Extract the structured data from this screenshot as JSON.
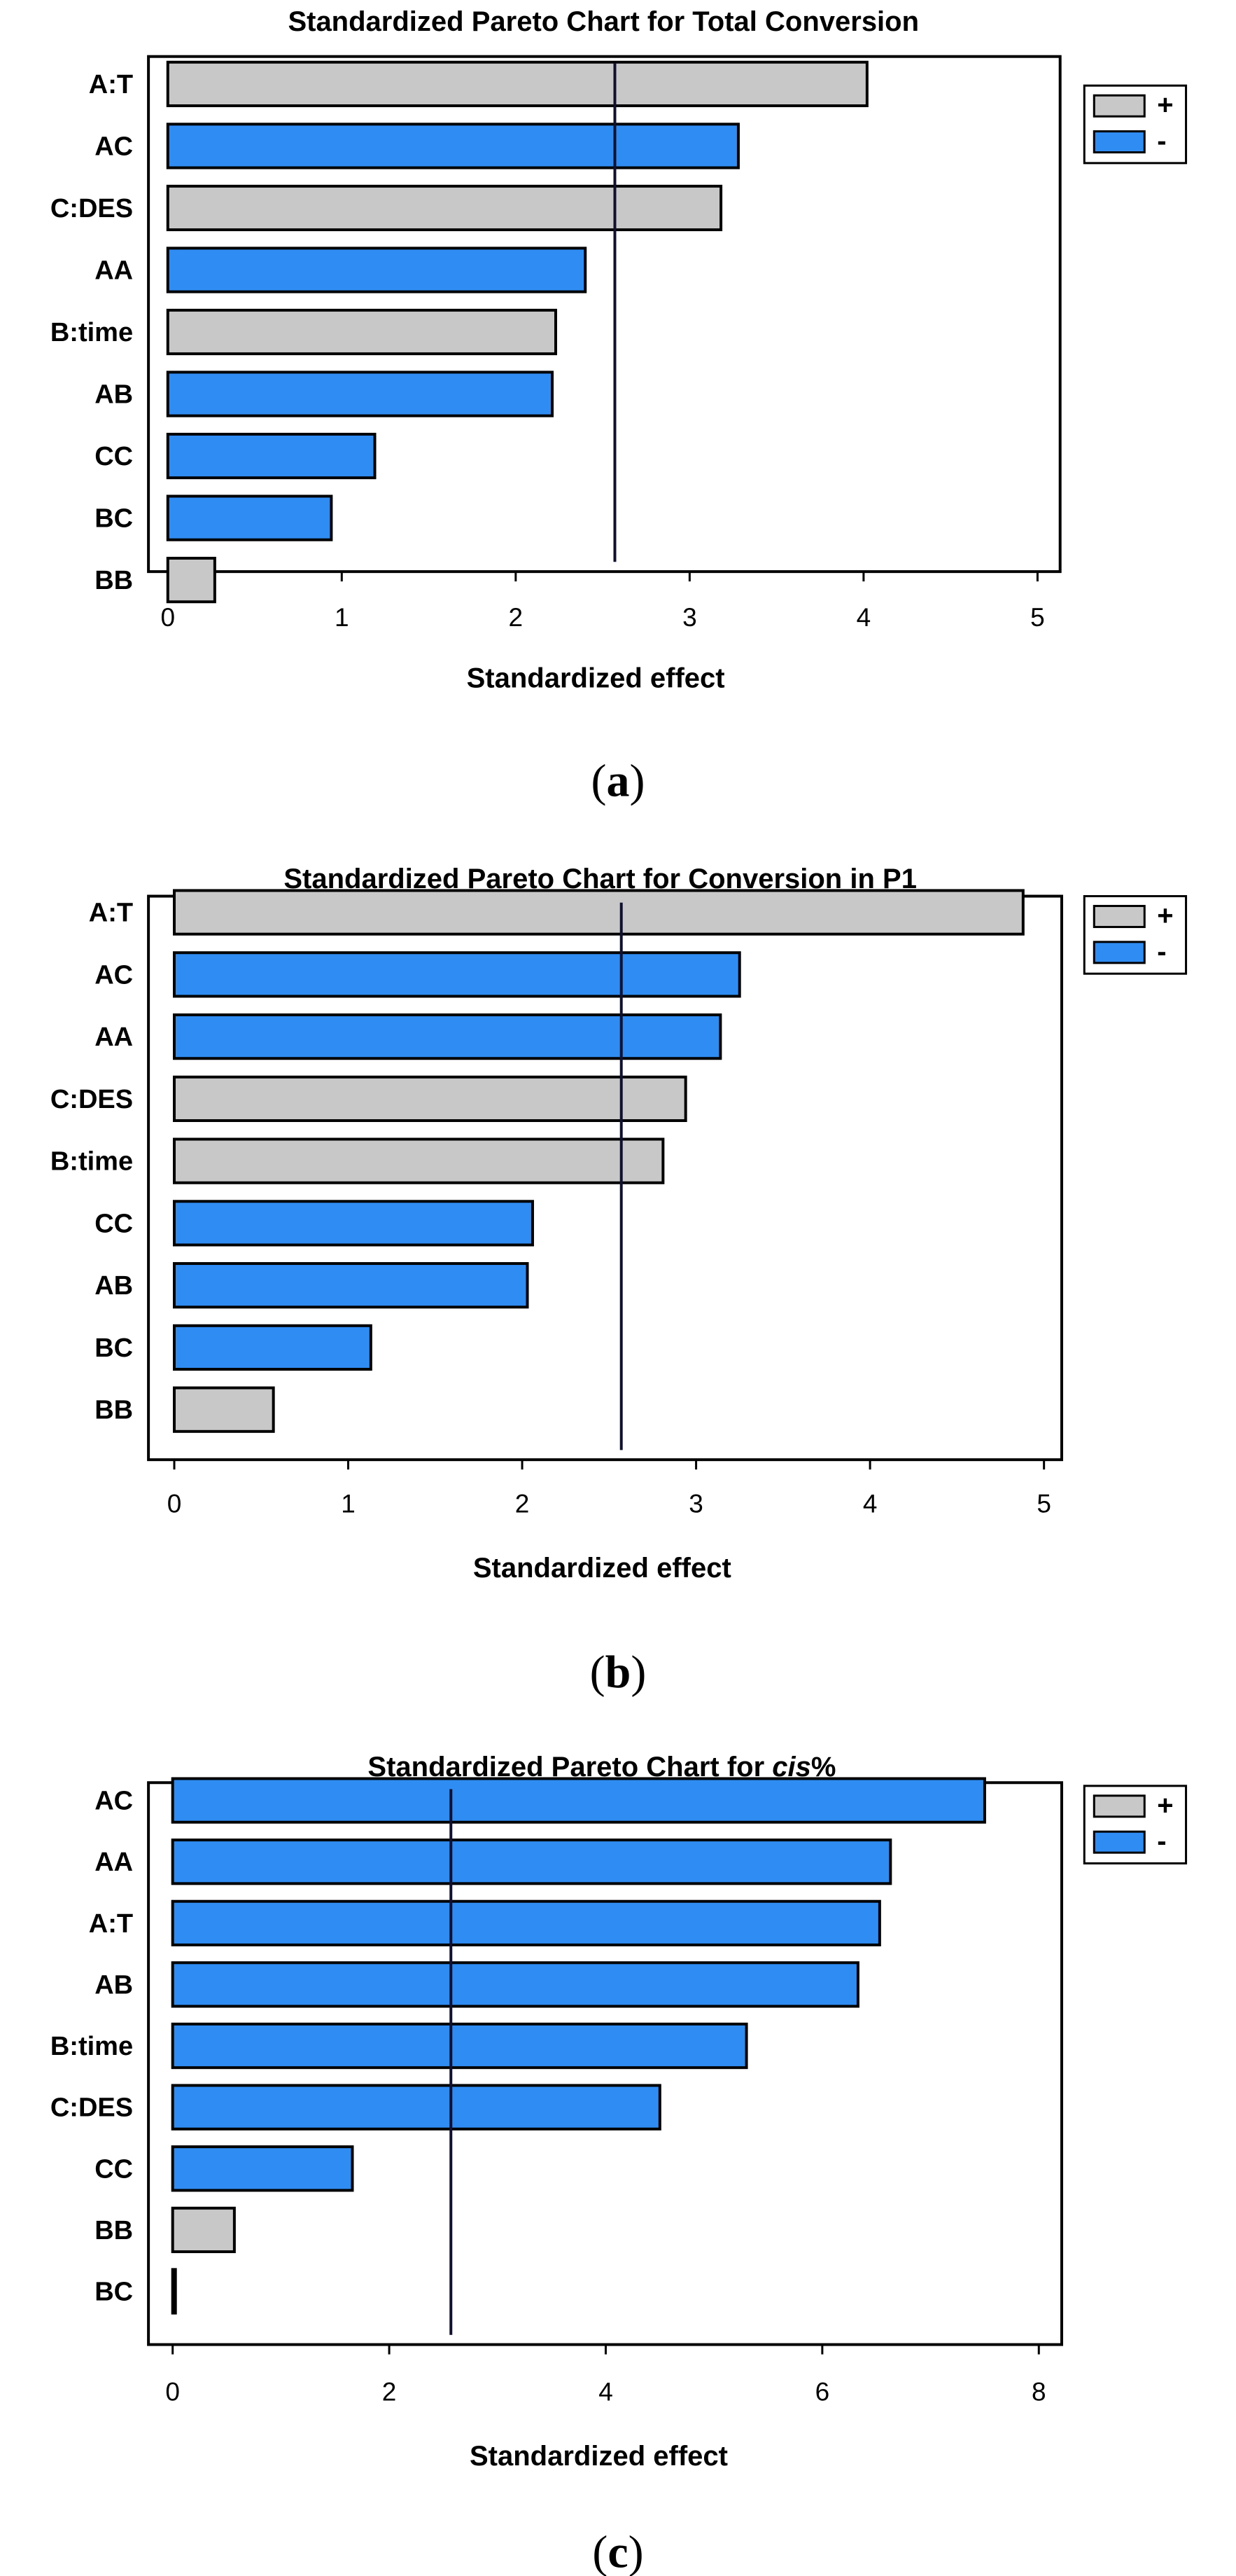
{
  "chart_data": [
    {
      "type": "bar",
      "orientation": "horizontal",
      "title": "Standardized Pareto Chart for Total Conversion",
      "caption": "a",
      "xlabel": "Standardized effect",
      "ylabel": "",
      "xlim": [
        0,
        5
      ],
      "xticks": [
        0,
        1,
        2,
        3,
        4,
        5
      ],
      "reference_line": 2.57,
      "categories": [
        "A:T",
        "AC",
        "C:DES",
        "AA",
        "B:time",
        "AB",
        "CC",
        "BC",
        "BB"
      ],
      "values": [
        4.02,
        3.28,
        3.18,
        2.4,
        2.23,
        2.21,
        1.19,
        0.94,
        0.27
      ],
      "signs": [
        "+",
        "-",
        "+",
        "-",
        "+",
        "-",
        "-",
        "-",
        "+"
      ],
      "legend": [
        {
          "label": "+",
          "color": "#c8c8c8"
        },
        {
          "label": "-",
          "color": "#2f8cf2"
        }
      ],
      "legend_position": "top-right"
    },
    {
      "type": "bar",
      "orientation": "horizontal",
      "title": "Standardized Pareto Chart for Conversion in P1",
      "caption": "b",
      "xlabel": "Standardized effect",
      "ylabel": "",
      "xlim": [
        0,
        5
      ],
      "xticks": [
        0,
        1,
        2,
        3,
        4,
        5
      ],
      "reference_line": 2.57,
      "categories": [
        "A:T",
        "AC",
        "AA",
        "C:DES",
        "B:time",
        "CC",
        "AB",
        "BC",
        "BB"
      ],
      "values": [
        4.88,
        3.25,
        3.14,
        2.94,
        2.81,
        2.06,
        2.03,
        1.13,
        0.57
      ],
      "signs": [
        "+",
        "-",
        "-",
        "+",
        "+",
        "-",
        "-",
        "-",
        "+"
      ],
      "legend": [
        {
          "label": "+",
          "color": "#c8c8c8"
        },
        {
          "label": "-",
          "color": "#2f8cf2"
        }
      ],
      "legend_position": "top-right"
    },
    {
      "type": "bar",
      "orientation": "horizontal",
      "title_parts": [
        "Standardized Pareto Chart for ",
        "cis",
        "%"
      ],
      "caption": "c",
      "xlabel": "Standardized effect",
      "ylabel": "",
      "xlim": [
        0,
        8
      ],
      "xticks": [
        0,
        2,
        4,
        6,
        8
      ],
      "reference_line": 2.57,
      "categories": [
        "AC",
        "AA",
        "A:T",
        "AB",
        "B:time",
        "C:DES",
        "CC",
        "BB",
        "BC"
      ],
      "values": [
        7.5,
        6.63,
        6.53,
        6.33,
        5.3,
        4.5,
        1.66,
        0.57,
        0.02
      ],
      "signs": [
        "-",
        "-",
        "-",
        "-",
        "-",
        "-",
        "-",
        "+",
        "+"
      ],
      "legend": [
        {
          "label": "+",
          "color": "#c8c8c8"
        },
        {
          "label": "-",
          "color": "#2f8cf2"
        }
      ],
      "legend_position": "top-right"
    }
  ]
}
